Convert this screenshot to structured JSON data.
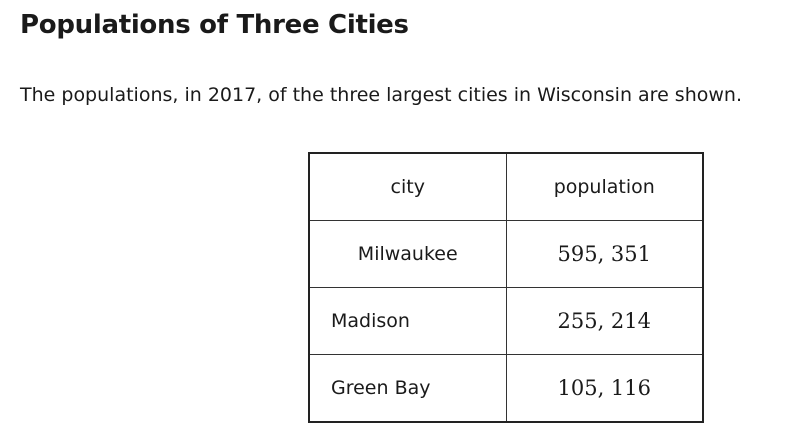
{
  "header": {
    "title": "Populations of Three Cities",
    "subtitle": "The populations, in 2017, of the three largest cities in Wisconsin are shown."
  },
  "table": {
    "columns": [
      "city",
      "population"
    ],
    "rows": [
      [
        "Milwaukee",
        "595, 351"
      ],
      [
        "Madison",
        "255, 214"
      ],
      [
        "Green Bay",
        "105, 116"
      ]
    ]
  }
}
